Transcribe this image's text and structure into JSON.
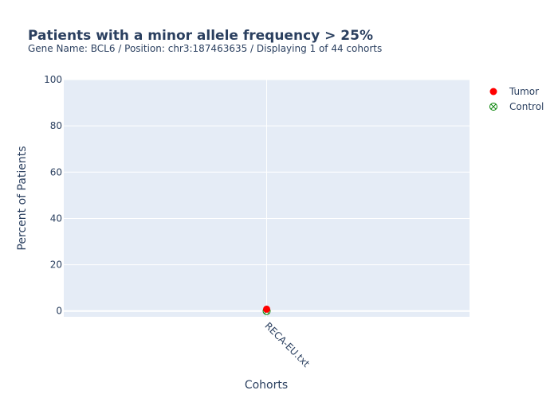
{
  "chart_data": {
    "type": "scatter",
    "title": "Patients with a minor allele frequency > 25%",
    "subtitle": "Gene Name: BCL6 / Position: chr3:187463635 / Displaying 1 of 44 cohorts",
    "xlabel": "Cohorts",
    "ylabel": "Percent of Patients",
    "categories": [
      "RECA-EU.txt"
    ],
    "ylim": [
      -2.5,
      100
    ],
    "yticks": [
      0,
      20,
      40,
      60,
      80,
      100
    ],
    "grid": true,
    "legend_position": "top-right",
    "series": [
      {
        "name": "Tumor",
        "values": [
          0.8
        ],
        "color": "#ff0000",
        "marker": "circle"
      },
      {
        "name": "Control",
        "values": [
          0
        ],
        "color": "#008000",
        "marker": "circle-x-open"
      }
    ],
    "colors": {
      "plot_background": "#e5ecf6",
      "grid": "#ffffff",
      "text": "#2a3f5f"
    }
  }
}
